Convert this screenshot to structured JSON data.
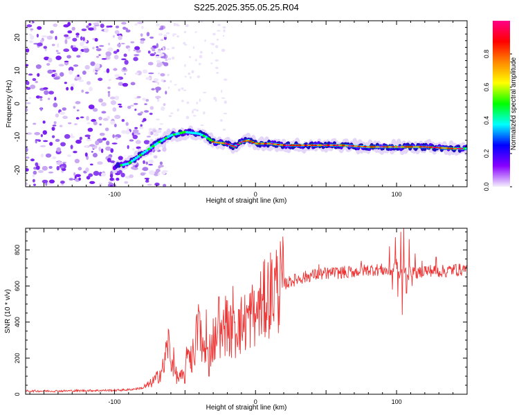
{
  "figure_title": "S225.2025.355.05.25.R04",
  "chart_data": [
    {
      "type": "heatmap",
      "xlabel": "Height of straight line (km)",
      "ylabel": "Frequency (Hz)",
      "xlim": [
        -163,
        150
      ],
      "ylim": [
        -25,
        25
      ],
      "x_ticks": [
        -100,
        0,
        100
      ],
      "y_ticks": [
        -20,
        -10,
        0,
        10,
        20
      ],
      "colorbar": {
        "label": "Normalized spectral amplitude",
        "range": [
          0,
          1
        ],
        "ticks": [
          0.0,
          0.2,
          0.4,
          0.6,
          0.8
        ],
        "colors": [
          "#f4f0fb",
          "#8800ff",
          "#0000ff",
          "#00ffff",
          "#00ff00",
          "#ffff00",
          "#ff8800",
          "#ff0000",
          "#ff0088"
        ]
      },
      "ridge": {
        "x": [
          -100,
          -90,
          -80,
          -70,
          -60,
          -50,
          -40,
          -35,
          -30,
          -25,
          -20,
          -15,
          -10,
          -5,
          0,
          10,
          20,
          40,
          60,
          80,
          100,
          120,
          140,
          150
        ],
        "y": [
          -19,
          -18,
          -15,
          -12,
          -9.5,
          -8.5,
          -9,
          -10,
          -11.5,
          -11.8,
          -12,
          -13,
          -11.5,
          -11,
          -12,
          -12,
          -12.5,
          -12.5,
          -12.5,
          -13,
          -13,
          -13,
          -13.5,
          -13.5
        ]
      }
    },
    {
      "type": "line",
      "xlabel": "Height of straight line (km)",
      "ylabel": "SNR (10 * v/v)",
      "xlim": [
        -163,
        150
      ],
      "ylim": [
        0,
        920
      ],
      "x_ticks": [
        -100,
        0,
        100
      ],
      "y_ticks": [
        0,
        200,
        400,
        600,
        800
      ],
      "series": [
        {
          "color": "#ee3333",
          "x": [
            -163,
            -140,
            -120,
            -100,
            -90,
            -80,
            -75,
            -70,
            -65,
            -62,
            -60,
            -57,
            -55,
            -50,
            -48,
            -45,
            -42,
            -40,
            -37,
            -35,
            -30,
            -27,
            -25,
            -22,
            -20,
            -18,
            -15,
            -12,
            -10,
            -5,
            0,
            5,
            10,
            15,
            20,
            25,
            30,
            40,
            50,
            55,
            60,
            70,
            80,
            90,
            95,
            98,
            100,
            102,
            105,
            108,
            110,
            115,
            120,
            130,
            140,
            150
          ],
          "y": [
            18,
            18,
            20,
            22,
            25,
            35,
            55,
            90,
            150,
            300,
            200,
            120,
            90,
            100,
            250,
            200,
            300,
            380,
            260,
            200,
            300,
            320,
            280,
            380,
            400,
            350,
            330,
            360,
            380,
            420,
            470,
            500,
            560,
            590,
            610,
            625,
            640,
            660,
            670,
            670,
            675,
            680,
            690,
            690,
            680,
            700,
            720,
            650,
            700,
            660,
            680,
            670,
            690,
            680,
            690,
            690
          ],
          "spikes": [
            [
              -62,
              360
            ],
            [
              -60,
              180
            ],
            [
              -58,
              260
            ],
            [
              -50,
              60
            ],
            [
              -48,
              220
            ],
            [
              -45,
              120
            ],
            [
              -42,
              430
            ],
            [
              -40,
              460
            ],
            [
              -38,
              180
            ],
            [
              -35,
              470
            ],
            [
              -33,
              100
            ],
            [
              -30,
              420
            ],
            [
              -28,
              300
            ],
            [
              -26,
              540
            ],
            [
              -25,
              200
            ],
            [
              -22,
              380
            ],
            [
              -20,
              520
            ],
            [
              -18,
              250
            ],
            [
              -16,
              600
            ],
            [
              -14,
              330
            ],
            [
              -12,
              470
            ],
            [
              -10,
              540
            ],
            [
              -8,
              380
            ],
            [
              -6,
              450
            ],
            [
              0,
              400
            ],
            [
              5,
              520
            ],
            [
              15,
              560
            ],
            [
              25,
              640
            ],
            [
              35,
              620
            ],
            [
              45,
              720
            ],
            [
              50,
              640
            ],
            [
              55,
              700
            ],
            [
              65,
              650
            ],
            [
              75,
              740
            ],
            [
              85,
              700
            ],
            [
              95,
              820
            ],
            [
              97,
              580
            ],
            [
              99,
              870
            ],
            [
              101,
              540
            ],
            [
              103,
              900
            ],
            [
              104,
              440
            ],
            [
              105,
              920
            ],
            [
              107,
              560
            ],
            [
              109,
              860
            ],
            [
              111,
              600
            ],
            [
              113,
              780
            ],
            [
              115,
              650
            ],
            [
              118,
              740
            ],
            [
              122,
              660
            ],
            [
              128,
              760
            ],
            [
              135,
              650
            ],
            [
              142,
              720
            ],
            [
              148,
              710
            ]
          ]
        }
      ]
    }
  ]
}
